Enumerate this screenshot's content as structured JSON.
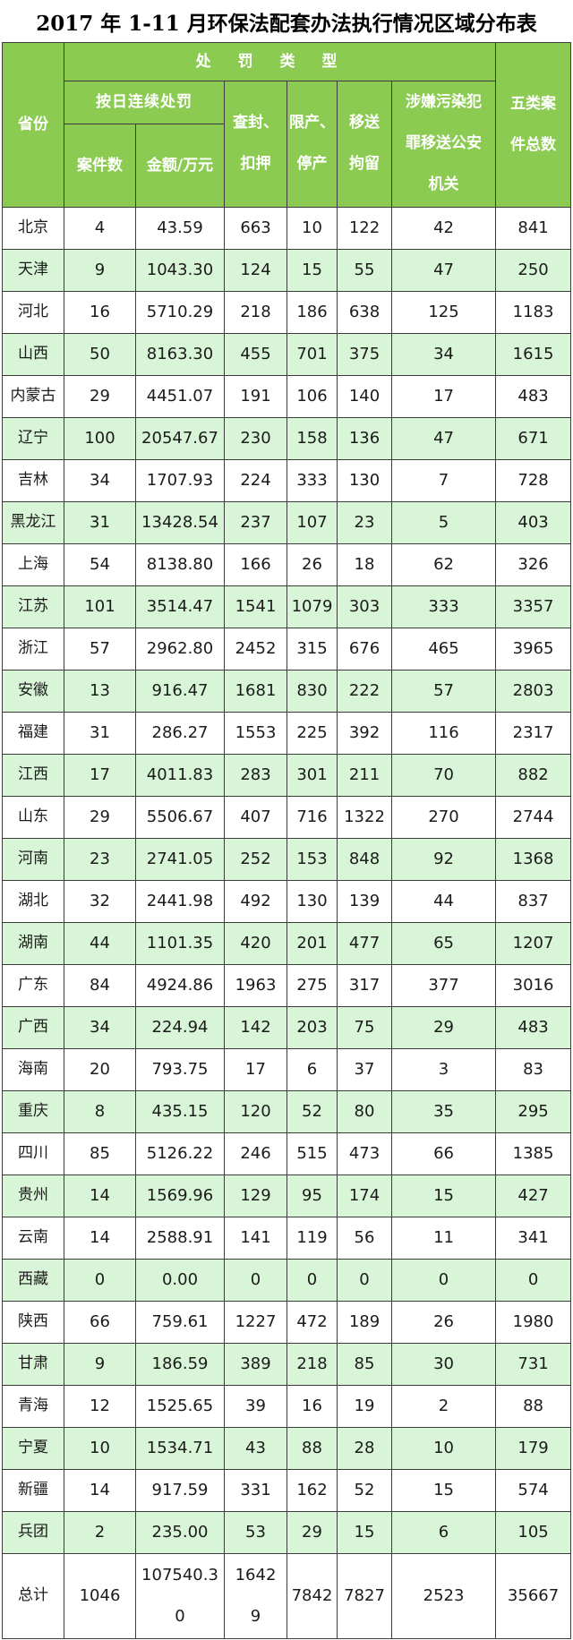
{
  "colors": {
    "header_green": "#8ccb52",
    "row_alt_green": "#d9f5d7",
    "border": "#3c3c3c",
    "header_text": "#ffffff",
    "body_text": "#1b1b1b"
  },
  "chart_data": {
    "type": "table",
    "title": "2017 年 1-11 月环保法配套办法执行情况区域分布表",
    "header": {
      "province": "省份",
      "penalty_type": "处罚类型",
      "daily_penalty": "按日连续处罚",
      "daily_penalty_cases": "案件数",
      "daily_penalty_amount": "金额/万元",
      "seizure": "查封、扣押",
      "production_limit": "限产、停产",
      "detention_transfer": "移送拘留",
      "crime_transfer": "涉嫌污染犯罪移送公安机关",
      "five_case_total": "五类案件总数"
    },
    "columns": [
      "省份",
      "案件数",
      "金额/万元",
      "查封、扣押",
      "限产、停产",
      "移送拘留",
      "涉嫌污染犯罪移送公安机关",
      "五类案件总数"
    ],
    "rows": [
      [
        "北京",
        "4",
        "43.59",
        "663",
        "10",
        "122",
        "42",
        "841"
      ],
      [
        "天津",
        "9",
        "1043.30",
        "124",
        "15",
        "55",
        "47",
        "250"
      ],
      [
        "河北",
        "16",
        "5710.29",
        "218",
        "186",
        "638",
        "125",
        "1183"
      ],
      [
        "山西",
        "50",
        "8163.30",
        "455",
        "701",
        "375",
        "34",
        "1615"
      ],
      [
        "内蒙古",
        "29",
        "4451.07",
        "191",
        "106",
        "140",
        "17",
        "483"
      ],
      [
        "辽宁",
        "100",
        "20547.67",
        "230",
        "158",
        "136",
        "47",
        "671"
      ],
      [
        "吉林",
        "34",
        "1707.93",
        "224",
        "333",
        "130",
        "7",
        "728"
      ],
      [
        "黑龙江",
        "31",
        "13428.54",
        "237",
        "107",
        "23",
        "5",
        "403"
      ],
      [
        "上海",
        "54",
        "8138.80",
        "166",
        "26",
        "18",
        "62",
        "326"
      ],
      [
        "江苏",
        "101",
        "3514.47",
        "1541",
        "1079",
        "303",
        "333",
        "3357"
      ],
      [
        "浙江",
        "57",
        "2962.80",
        "2452",
        "315",
        "676",
        "465",
        "3965"
      ],
      [
        "安徽",
        "13",
        "916.47",
        "1681",
        "830",
        "222",
        "57",
        "2803"
      ],
      [
        "福建",
        "31",
        "286.27",
        "1553",
        "225",
        "392",
        "116",
        "2317"
      ],
      [
        "江西",
        "17",
        "4011.83",
        "283",
        "301",
        "211",
        "70",
        "882"
      ],
      [
        "山东",
        "29",
        "5506.67",
        "407",
        "716",
        "1322",
        "270",
        "2744"
      ],
      [
        "河南",
        "23",
        "2741.05",
        "252",
        "153",
        "848",
        "92",
        "1368"
      ],
      [
        "湖北",
        "32",
        "2441.98",
        "492",
        "130",
        "139",
        "44",
        "837"
      ],
      [
        "湖南",
        "44",
        "1101.35",
        "420",
        "201",
        "477",
        "65",
        "1207"
      ],
      [
        "广东",
        "84",
        "4924.86",
        "1963",
        "275",
        "317",
        "377",
        "3016"
      ],
      [
        "广西",
        "34",
        "224.94",
        "142",
        "203",
        "75",
        "29",
        "483"
      ],
      [
        "海南",
        "20",
        "793.75",
        "17",
        "6",
        "37",
        "3",
        "83"
      ],
      [
        "重庆",
        "8",
        "435.15",
        "120",
        "52",
        "80",
        "35",
        "295"
      ],
      [
        "四川",
        "85",
        "5126.22",
        "246",
        "515",
        "473",
        "66",
        "1385"
      ],
      [
        "贵州",
        "14",
        "1569.96",
        "129",
        "95",
        "174",
        "15",
        "427"
      ],
      [
        "云南",
        "14",
        "2588.91",
        "141",
        "119",
        "56",
        "11",
        "341"
      ],
      [
        "西藏",
        "0",
        "0.00",
        "0",
        "0",
        "0",
        "0",
        "0"
      ],
      [
        "陕西",
        "66",
        "759.61",
        "1227",
        "472",
        "189",
        "26",
        "1980"
      ],
      [
        "甘肃",
        "9",
        "186.59",
        "389",
        "218",
        "85",
        "30",
        "731"
      ],
      [
        "青海",
        "12",
        "1525.65",
        "39",
        "16",
        "19",
        "2",
        "88"
      ],
      [
        "宁夏",
        "10",
        "1534.71",
        "43",
        "88",
        "28",
        "10",
        "179"
      ],
      [
        "新疆",
        "14",
        "917.59",
        "331",
        "162",
        "52",
        "15",
        "574"
      ],
      [
        "兵团",
        "2",
        "235.00",
        "53",
        "29",
        "15",
        "6",
        "105"
      ],
      [
        "总计",
        "1046",
        "107540.30",
        "16429",
        "7842",
        "7827",
        "2523",
        "35667"
      ]
    ],
    "totals_row_label": "总计",
    "layout_hints": {
      "row_banding": "odd rows white, even rows pale green",
      "grid": true
    }
  }
}
